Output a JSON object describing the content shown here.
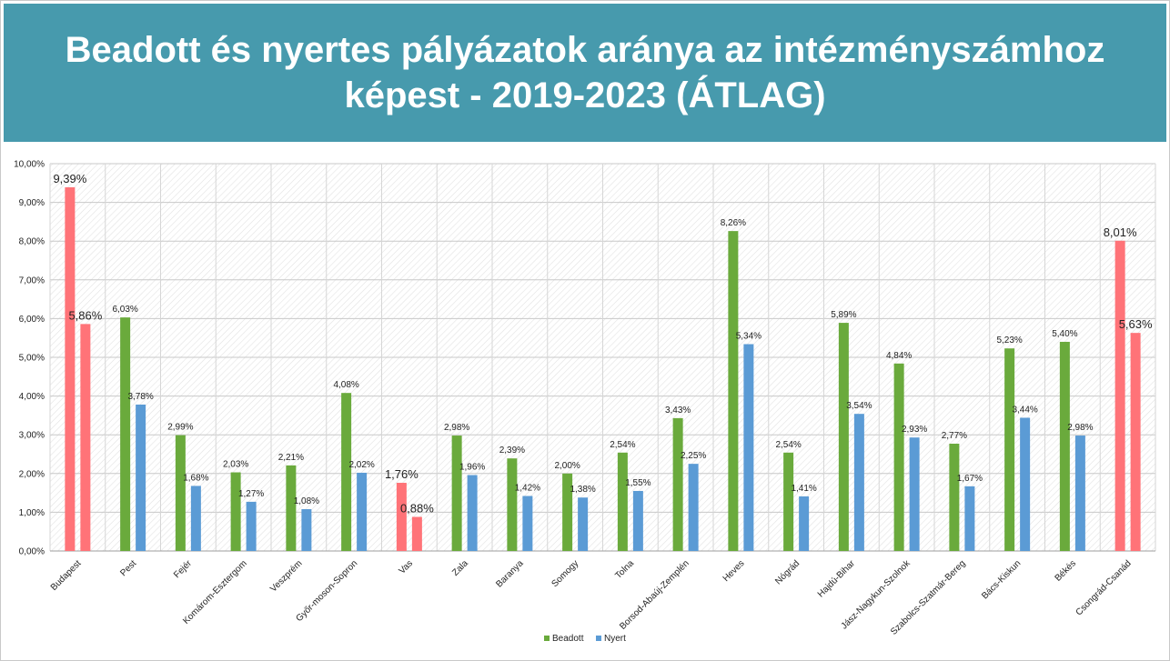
{
  "slide": {
    "title": "Beadott és nyertes pályázatok aránya az intézményszámhoz képest - 2019-2023 (ÁTLAG)"
  },
  "chart_data": {
    "type": "bar",
    "title": "",
    "xlabel": "",
    "ylabel": "",
    "ylim": [
      0,
      10
    ],
    "yticks": [
      "0,00%",
      "1,00%",
      "2,00%",
      "3,00%",
      "4,00%",
      "5,00%",
      "6,00%",
      "7,00%",
      "8,00%",
      "9,00%",
      "10,00%"
    ],
    "grid": true,
    "legend_position": "bottom",
    "categories": [
      "Budapest",
      "Pest",
      "Fejér",
      "Komárom-Esztergom",
      "Veszprém",
      "Győr-moson-Sopron",
      "Vas",
      "Zala",
      "Baranya",
      "Somogy",
      "Tolna",
      "Borsod-Abaúj-Zemplén",
      "Heves",
      "Nógrád",
      "Hajdú-Bihar",
      "Jász-Nagykun-Szolnok",
      "Szabolcs-Szatmár-Bereg",
      "Bács-Kiskun",
      "Békés",
      "Csongrád-Csanád"
    ],
    "highlighted": [
      "Budapest",
      "Vas",
      "Csongrád-Csanád"
    ],
    "series": [
      {
        "name": "Beadott",
        "color": "#6aaa3c",
        "values": [
          9.39,
          6.03,
          2.99,
          2.03,
          2.21,
          4.08,
          1.76,
          2.98,
          2.39,
          2.0,
          2.54,
          3.43,
          8.26,
          2.54,
          5.89,
          4.84,
          2.77,
          5.23,
          5.4,
          8.01
        ],
        "labels": [
          "9,39%",
          "6,03%",
          "2,99%",
          "2,03%",
          "2,21%",
          "4,08%",
          "1,76%",
          "2,98%",
          "2,39%",
          "2,00%",
          "2,54%",
          "3,43%",
          "8,26%",
          "2,54%",
          "5,89%",
          "4,84%",
          "2,77%",
          "5,23%",
          "5,40%",
          "8,01%"
        ]
      },
      {
        "name": "Nyert",
        "color": "#5b9bd5",
        "values": [
          5.86,
          3.78,
          1.68,
          1.27,
          1.08,
          2.02,
          0.88,
          1.96,
          1.42,
          1.38,
          1.55,
          2.25,
          5.34,
          1.41,
          3.54,
          2.93,
          1.67,
          3.44,
          2.98,
          5.63
        ],
        "labels": [
          "5,86%",
          "3,78%",
          "1,68%",
          "1,27%",
          "1,08%",
          "2,02%",
          "0,88%",
          "1,96%",
          "1,42%",
          "1,38%",
          "1,55%",
          "2,25%",
          "5,34%",
          "1,41%",
          "3,54%",
          "2,93%",
          "1,67%",
          "3,44%",
          "2,98%",
          "5,63%"
        ]
      }
    ],
    "highlight_color": "#ff7378"
  }
}
